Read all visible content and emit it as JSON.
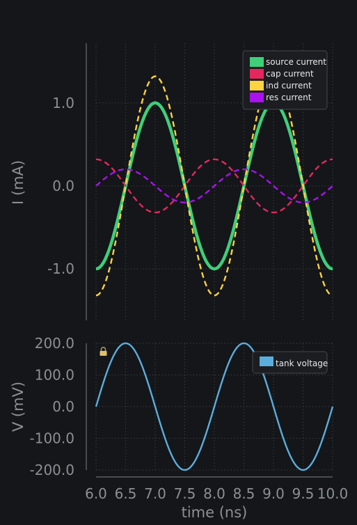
{
  "colors": {
    "background": "#141619",
    "axis": "#6b6e73",
    "grid": "#3a3d42",
    "tick_label": "#8c8f94",
    "axis_label": "#8c8f94",
    "legend_bg": "#1b1d21",
    "legend_border": "#45484d",
    "legend_text": "#e8e8e8"
  },
  "chart_data": [
    {
      "type": "line",
      "title": "",
      "xlabel": "",
      "ylabel": "I (mA)",
      "xlim": [
        6.0,
        10.0
      ],
      "ylim": [
        -1.62,
        1.72
      ],
      "yticks": [
        -1.0,
        0.0,
        1.0
      ],
      "ytick_labels": [
        "-1.0",
        "0.0",
        "1.0"
      ],
      "xticks": [
        6.0,
        6.5,
        7.0,
        7.5,
        8.0,
        8.5,
        9.0,
        9.5,
        10.0
      ],
      "grid": true,
      "legend_position": "top-right",
      "period_ns": 2.0,
      "series": [
        {
          "name": "source current",
          "color": "#3ecf7a",
          "style": "solid",
          "amplitude": 1.0,
          "phase_deg": -90
        },
        {
          "name": "cap current",
          "color": "#e8265e",
          "style": "dashed",
          "amplitude": 0.32,
          "phase_deg": 90
        },
        {
          "name": "ind current",
          "color": "#ffd23f",
          "style": "dashed",
          "amplitude": 1.32,
          "phase_deg": -90
        },
        {
          "name": "res current",
          "color": "#aa11ee",
          "style": "dashed",
          "amplitude": 0.2,
          "phase_deg": 0
        }
      ]
    },
    {
      "type": "line",
      "title": "",
      "xlabel": "time (ns)",
      "ylabel": "V (mV)",
      "xlim": [
        6.0,
        10.0
      ],
      "ylim": [
        -200,
        200
      ],
      "yticks": [
        -200,
        -100,
        0,
        100,
        200
      ],
      "ytick_labels": [
        "-200.0",
        "-100.0",
        "0.0",
        "100.0",
        "200.0"
      ],
      "xticks": [
        6.0,
        6.5,
        7.0,
        7.5,
        8.0,
        8.5,
        9.0,
        9.5,
        10.0
      ],
      "xtick_labels": [
        "6.0",
        "6.5",
        "7.0",
        "7.5",
        "8.0",
        "8.5",
        "9.0",
        "9.5",
        "10.0"
      ],
      "grid": true,
      "legend_position": "top-right",
      "period_ns": 2.0,
      "series": [
        {
          "name": "tank voltage",
          "color": "#5aaede",
          "style": "solid",
          "amplitude": 200,
          "phase_deg": 0
        }
      ]
    }
  ],
  "lock_icon": "lock-icon"
}
